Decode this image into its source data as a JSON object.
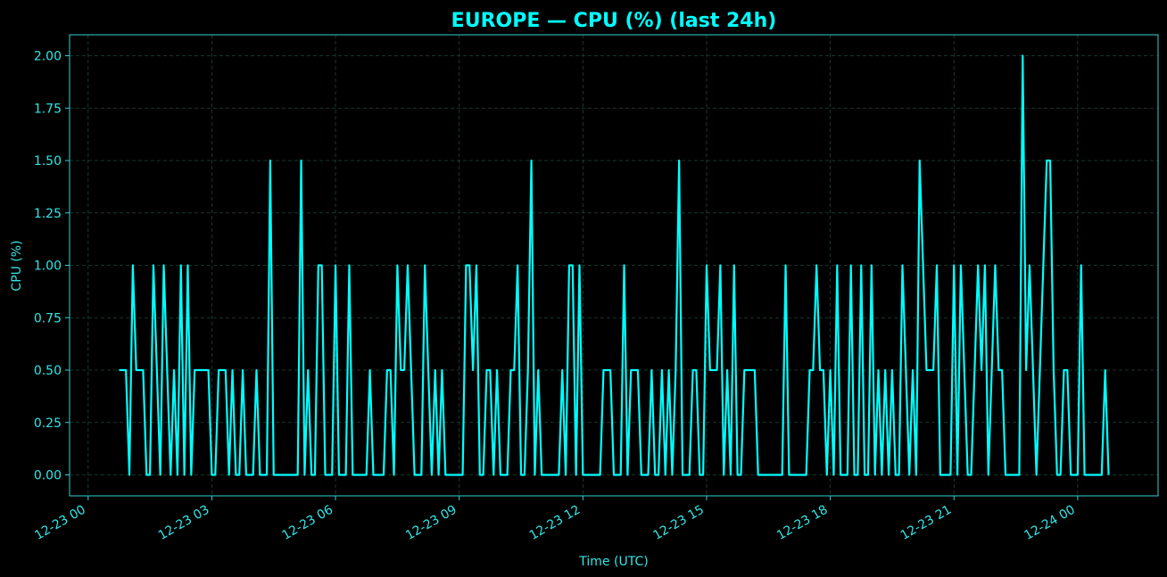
{
  "chart_data": {
    "type": "line",
    "title": "EUROPE — CPU (%) (last 24h)",
    "x_label": "Time (UTC)",
    "y_label": "CPU (%)",
    "xlim": [
      "12-22 23:33",
      "12-24 01:57"
    ],
    "xticks": [
      "12-23 00",
      "12-23 03",
      "12-23 06",
      "12-23 09",
      "12-23 12",
      "12-23 15",
      "12-23 18",
      "12-23 21",
      "12-24 00"
    ],
    "ylim": [
      -0.1,
      2.1
    ],
    "yticks": [
      {
        "value": 0,
        "label": "0.00"
      },
      {
        "value": 0.25,
        "label": "0.25"
      },
      {
        "value": 0.5,
        "label": "0.50"
      },
      {
        "value": 0.75,
        "label": "0.75"
      },
      {
        "value": 1,
        "label": "1.00"
      },
      {
        "value": 1.25,
        "label": "1.25"
      },
      {
        "value": 1.5,
        "label": "1.50"
      },
      {
        "value": 1.75,
        "label": "1.75"
      },
      {
        "value": 2,
        "label": "2.00"
      }
    ],
    "grid": true,
    "x": [
      "12-23 00:45",
      "12-23 00:50",
      "12-23 00:55",
      "12-23 01:00",
      "12-23 01:05",
      "12-23 01:10",
      "12-23 01:15",
      "12-23 01:20",
      "12-23 01:25",
      "12-23 01:30",
      "12-23 01:35",
      "12-23 01:40",
      "12-23 01:45",
      "12-23 01:50",
      "12-23 01:55",
      "12-23 02:00",
      "12-23 02:05",
      "12-23 02:10",
      "12-23 02:15",
      "12-23 02:20",
      "12-23 02:25",
      "12-23 02:30",
      "12-23 02:35",
      "12-23 02:40",
      "12-23 02:45",
      "12-23 02:50",
      "12-23 02:55",
      "12-23 03:00",
      "12-23 03:05",
      "12-23 03:10",
      "12-23 03:15",
      "12-23 03:20",
      "12-23 03:25",
      "12-23 03:30",
      "12-23 03:35",
      "12-23 03:40",
      "12-23 03:45",
      "12-23 03:50",
      "12-23 03:55",
      "12-23 04:00",
      "12-23 04:05",
      "12-23 04:10",
      "12-23 04:15",
      "12-23 04:20",
      "12-23 04:25",
      "12-23 04:30",
      "12-23 04:35",
      "12-23 04:40",
      "12-23 04:45",
      "12-23 04:50",
      "12-23 04:55",
      "12-23 05:00",
      "12-23 05:05",
      "12-23 05:10",
      "12-23 05:15",
      "12-23 05:20",
      "12-23 05:25",
      "12-23 05:30",
      "12-23 05:35",
      "12-23 05:40",
      "12-23 05:45",
      "12-23 05:50",
      "12-23 05:55",
      "12-23 06:00",
      "12-23 06:05",
      "12-23 06:10",
      "12-23 06:15",
      "12-23 06:20",
      "12-23 06:25",
      "12-23 06:30",
      "12-23 06:35",
      "12-23 06:40",
      "12-23 06:45",
      "12-23 06:50",
      "12-23 06:55",
      "12-23 07:00",
      "12-23 07:05",
      "12-23 07:10",
      "12-23 07:15",
      "12-23 07:20",
      "12-23 07:25",
      "12-23 07:30",
      "12-23 07:35",
      "12-23 07:40",
      "12-23 07:45",
      "12-23 07:50",
      "12-23 07:55",
      "12-23 08:00",
      "12-23 08:05",
      "12-23 08:10",
      "12-23 08:15",
      "12-23 08:20",
      "12-23 08:25",
      "12-23 08:30",
      "12-23 08:35",
      "12-23 08:40",
      "12-23 08:45",
      "12-23 08:50",
      "12-23 08:55",
      "12-23 09:00",
      "12-23 09:05",
      "12-23 09:10",
      "12-23 09:15",
      "12-23 09:20",
      "12-23 09:25",
      "12-23 09:30",
      "12-23 09:35",
      "12-23 09:40",
      "12-23 09:45",
      "12-23 09:50",
      "12-23 09:55",
      "12-23 10:00",
      "12-23 10:05",
      "12-23 10:10",
      "12-23 10:15",
      "12-23 10:20",
      "12-23 10:25",
      "12-23 10:30",
      "12-23 10:35",
      "12-23 10:40",
      "12-23 10:45",
      "12-23 10:50",
      "12-23 10:55",
      "12-23 11:00",
      "12-23 11:05",
      "12-23 11:10",
      "12-23 11:15",
      "12-23 11:20",
      "12-23 11:25",
      "12-23 11:30",
      "12-23 11:35",
      "12-23 11:40",
      "12-23 11:45",
      "12-23 11:50",
      "12-23 11:55",
      "12-23 12:00",
      "12-23 12:05",
      "12-23 12:10",
      "12-23 12:15",
      "12-23 12:20",
      "12-23 12:25",
      "12-23 12:30",
      "12-23 12:35",
      "12-23 12:40",
      "12-23 12:45",
      "12-23 12:50",
      "12-23 12:55",
      "12-23 13:00",
      "12-23 13:05",
      "12-23 13:10",
      "12-23 13:15",
      "12-23 13:20",
      "12-23 13:25",
      "12-23 13:30",
      "12-23 13:35",
      "12-23 13:40",
      "12-23 13:45",
      "12-23 13:50",
      "12-23 13:55",
      "12-23 14:00",
      "12-23 14:05",
      "12-23 14:10",
      "12-23 14:15",
      "12-23 14:20",
      "12-23 14:25",
      "12-23 14:30",
      "12-23 14:35",
      "12-23 14:40",
      "12-23 14:45",
      "12-23 14:50",
      "12-23 14:55",
      "12-23 15:00",
      "12-23 15:05",
      "12-23 15:10",
      "12-23 15:15",
      "12-23 15:20",
      "12-23 15:25",
      "12-23 15:30",
      "12-23 15:35",
      "12-23 15:40",
      "12-23 15:45",
      "12-23 15:50",
      "12-23 15:55",
      "12-23 16:00",
      "12-23 16:05",
      "12-23 16:10",
      "12-23 16:15",
      "12-23 16:20",
      "12-23 16:25",
      "12-23 16:30",
      "12-23 16:35",
      "12-23 16:40",
      "12-23 16:45",
      "12-23 16:50",
      "12-23 16:55",
      "12-23 17:00",
      "12-23 17:05",
      "12-23 17:10",
      "12-23 17:15",
      "12-23 17:20",
      "12-23 17:25",
      "12-23 17:30",
      "12-23 17:35",
      "12-23 17:40",
      "12-23 17:45",
      "12-23 17:50",
      "12-23 17:55",
      "12-23 18:00",
      "12-23 18:05",
      "12-23 18:10",
      "12-23 18:15",
      "12-23 18:20",
      "12-23 18:25",
      "12-23 18:30",
      "12-23 18:35",
      "12-23 18:40",
      "12-23 18:45",
      "12-23 18:50",
      "12-23 18:55",
      "12-23 19:00",
      "12-23 19:05",
      "12-23 19:10",
      "12-23 19:15",
      "12-23 19:20",
      "12-23 19:25",
      "12-23 19:30",
      "12-23 19:35",
      "12-23 19:40",
      "12-23 19:45",
      "12-23 19:50",
      "12-23 19:55",
      "12-23 20:00",
      "12-23 20:05",
      "12-23 20:10",
      "12-23 20:15",
      "12-23 20:20",
      "12-23 20:25",
      "12-23 20:30",
      "12-23 20:35",
      "12-23 20:40",
      "12-23 20:45",
      "12-23 20:50",
      "12-23 20:55",
      "12-23 21:00",
      "12-23 21:05",
      "12-23 21:10",
      "12-23 21:15",
      "12-23 21:20",
      "12-23 21:25",
      "12-23 21:30",
      "12-23 21:35",
      "12-23 21:40",
      "12-23 21:45",
      "12-23 21:50",
      "12-23 21:55",
      "12-23 22:00",
      "12-23 22:05",
      "12-23 22:10",
      "12-23 22:15",
      "12-23 22:20",
      "12-23 22:25",
      "12-23 22:30",
      "12-23 22:35",
      "12-23 22:40",
      "12-23 22:45",
      "12-23 22:50",
      "12-23 22:55",
      "12-23 23:00",
      "12-23 23:05",
      "12-23 23:10",
      "12-23 23:15",
      "12-23 23:20",
      "12-23 23:25",
      "12-23 23:30",
      "12-23 23:35",
      "12-23 23:40",
      "12-23 23:45",
      "12-23 23:50",
      "12-23 23:55",
      "12-24 00:00",
      "12-24 00:05",
      "12-24 00:10",
      "12-24 00:15",
      "12-24 00:20",
      "12-24 00:25",
      "12-24 00:30",
      "12-24 00:35",
      "12-24 00:40",
      "12-24 00:45"
    ],
    "series": [
      {
        "name": "CPU (%)",
        "color": "#00ffff",
        "values": [
          0.5,
          0.5,
          0.5,
          0,
          1,
          0.5,
          0.5,
          0.5,
          0,
          0,
          1,
          0.5,
          0,
          1,
          0.5,
          0,
          0.5,
          0,
          1,
          0,
          1,
          0,
          0.5,
          0.5,
          0.5,
          0.5,
          0.5,
          0,
          0,
          0.5,
          0.5,
          0.5,
          0,
          0.5,
          0,
          0,
          0.5,
          0,
          0,
          0,
          0.5,
          0,
          0,
          0,
          1.5,
          0,
          0,
          0,
          0,
          0,
          0,
          0,
          0,
          1.5,
          0,
          0.5,
          0,
          0,
          1,
          1,
          0,
          0,
          0,
          1,
          0,
          0,
          0,
          1,
          0,
          0,
          0,
          0,
          0,
          0.5,
          0,
          0,
          0,
          0,
          0.5,
          0.5,
          0,
          1,
          0.5,
          0.5,
          1,
          0.5,
          0,
          0,
          0,
          1,
          0.5,
          0,
          0.5,
          0,
          0.5,
          0,
          0,
          0,
          0,
          0,
          0,
          1,
          1,
          0.5,
          1,
          0,
          0,
          0.5,
          0.5,
          0,
          0.5,
          0,
          0,
          0,
          0.5,
          0.5,
          1,
          0,
          0,
          0.5,
          1.5,
          0,
          0.5,
          0,
          0,
          0,
          0,
          0,
          0,
          0.5,
          0,
          1,
          1,
          0,
          1,
          0,
          0,
          0,
          0,
          0,
          0,
          0.5,
          0.5,
          0.5,
          0,
          0,
          0,
          1,
          0,
          0.5,
          0.5,
          0.5,
          0,
          0,
          0,
          0.5,
          0,
          0,
          0.5,
          0,
          0.5,
          0,
          0.5,
          1.5,
          0,
          0,
          0,
          0.5,
          0.5,
          0,
          0,
          1,
          0.5,
          0.5,
          0.5,
          1,
          0,
          0.5,
          0,
          1,
          0,
          0,
          0.5,
          0.5,
          0.5,
          0.5,
          0,
          0,
          0,
          0,
          0,
          0,
          0,
          0,
          1,
          0,
          0,
          0,
          0,
          0,
          0,
          0.5,
          0.5,
          1,
          0.5,
          0.5,
          0,
          0.5,
          0,
          1,
          0,
          0,
          0,
          1,
          0,
          0,
          1,
          0,
          0,
          1,
          0,
          0.5,
          0,
          0.5,
          0,
          0.5,
          0,
          0,
          1,
          0.5,
          0,
          0.5,
          0,
          1.5,
          1,
          0.5,
          0.5,
          0.5,
          1,
          0,
          0,
          0,
          0,
          1,
          0,
          1,
          0.5,
          0,
          0,
          0.5,
          1,
          0.5,
          1,
          0,
          0.5,
          1,
          0.5,
          0.5,
          0,
          0,
          0,
          0,
          0,
          2,
          0.5,
          1,
          0.5,
          0,
          0.5,
          1,
          1.5,
          1.5,
          0.5,
          0,
          0,
          0.5,
          0.5,
          0,
          0,
          0,
          1,
          0,
          0,
          0,
          0,
          0,
          0,
          0.5,
          0
        ]
      }
    ]
  }
}
